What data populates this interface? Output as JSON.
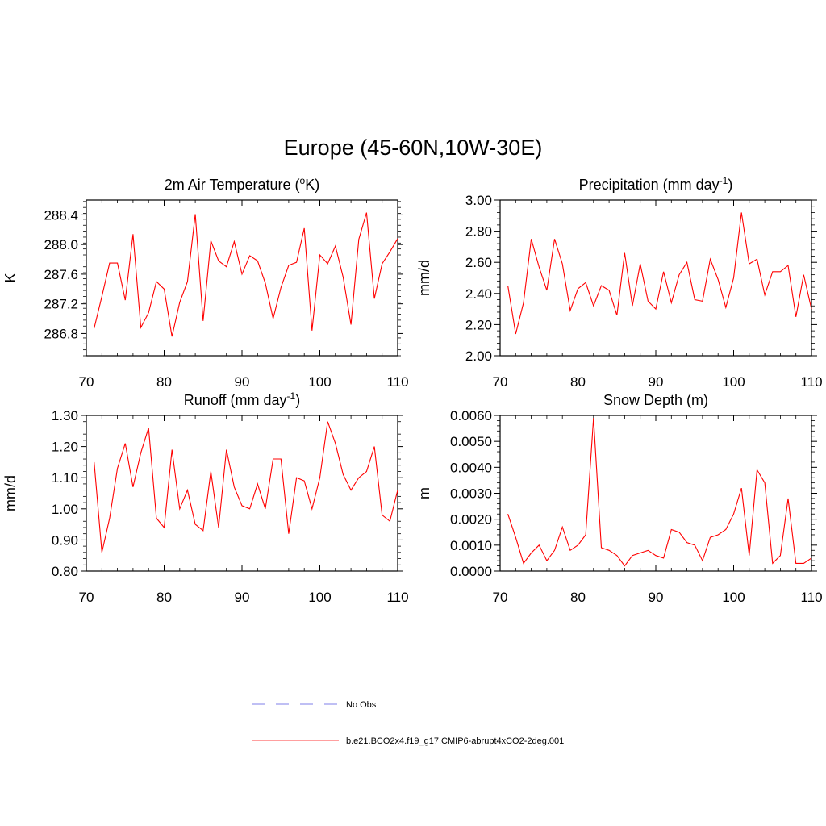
{
  "figure": {
    "title": "Europe (45-60N,10W-30E)"
  },
  "chart_data": [
    {
      "type": "line",
      "title": "2m Air Temperature (",
      "title_sup": "o",
      "title_end": "K)",
      "ylabel": "K",
      "xlim": [
        70,
        110
      ],
      "ylim": [
        286.5,
        288.6
      ],
      "xticks": [
        70,
        80,
        90,
        100,
        110
      ],
      "xtick_labels": [
        "70",
        "80",
        "90",
        "100",
        "110"
      ],
      "yticks": [
        286.8,
        287.2,
        287.6,
        288.0,
        288.4
      ],
      "ytick_labels": [
        "286.8",
        "287.2",
        "287.6",
        "288.0",
        "288.4"
      ],
      "series": [
        {
          "color": "#ff0000",
          "x": [
            71,
            72,
            73,
            74,
            75,
            76,
            77,
            78,
            79,
            80,
            81,
            82,
            83,
            84,
            85,
            86,
            87,
            88,
            89,
            90,
            91,
            92,
            93,
            94,
            95,
            96,
            97,
            98,
            99,
            100,
            101,
            102,
            103,
            104,
            105,
            106,
            107,
            108,
            109,
            110
          ],
          "values": [
            286.87,
            287.3,
            287.75,
            287.75,
            287.25,
            288.14,
            286.88,
            287.08,
            287.5,
            287.4,
            286.76,
            287.22,
            287.5,
            288.41,
            286.97,
            288.05,
            287.78,
            287.7,
            288.04,
            287.6,
            287.85,
            287.78,
            287.48,
            287.0,
            287.42,
            287.72,
            287.76,
            288.22,
            286.84,
            287.86,
            287.74,
            287.98,
            287.56,
            286.92,
            288.07,
            288.43,
            287.27,
            287.74,
            287.9,
            288.08
          ]
        }
      ]
    },
    {
      "type": "line",
      "title": "Precipitation (mm day",
      "title_sup": "-1",
      "title_end": ")",
      "ylabel": "mm/d",
      "xlim": [
        70,
        110
      ],
      "ylim": [
        2.0,
        3.0
      ],
      "xticks": [
        70,
        80,
        90,
        100,
        110
      ],
      "xtick_labels": [
        "70",
        "80",
        "90",
        "100",
        "110"
      ],
      "yticks": [
        2.0,
        2.2,
        2.4,
        2.6,
        2.8,
        3.0
      ],
      "ytick_labels": [
        "2.00",
        "2.20",
        "2.40",
        "2.60",
        "2.80",
        "3.00"
      ],
      "series": [
        {
          "color": "#ff0000",
          "x": [
            71,
            72,
            73,
            74,
            75,
            76,
            77,
            78,
            79,
            80,
            81,
            82,
            83,
            84,
            85,
            86,
            87,
            88,
            89,
            90,
            91,
            92,
            93,
            94,
            95,
            96,
            97,
            98,
            99,
            100,
            101,
            102,
            103,
            104,
            105,
            106,
            107,
            108,
            109,
            110
          ],
          "values": [
            2.45,
            2.14,
            2.34,
            2.75,
            2.57,
            2.42,
            2.75,
            2.59,
            2.29,
            2.43,
            2.47,
            2.32,
            2.45,
            2.42,
            2.26,
            2.66,
            2.32,
            2.59,
            2.35,
            2.3,
            2.54,
            2.34,
            2.52,
            2.6,
            2.36,
            2.35,
            2.62,
            2.49,
            2.31,
            2.5,
            2.92,
            2.59,
            2.62,
            2.39,
            2.54,
            2.54,
            2.58,
            2.25,
            2.52,
            2.3
          ]
        }
      ]
    },
    {
      "type": "line",
      "title": "Runoff (mm day",
      "title_sup": "-1",
      "title_end": ")",
      "ylabel": "mm/d",
      "xlim": [
        70,
        110
      ],
      "ylim": [
        0.8,
        1.3
      ],
      "xticks": [
        70,
        80,
        90,
        100,
        110
      ],
      "xtick_labels": [
        "70",
        "80",
        "90",
        "100",
        "110"
      ],
      "yticks": [
        0.8,
        0.9,
        1.0,
        1.1,
        1.2,
        1.3
      ],
      "ytick_labels": [
        "0.80",
        "0.90",
        "1.00",
        "1.10",
        "1.20",
        "1.30"
      ],
      "series": [
        {
          "color": "#ff0000",
          "x": [
            71,
            72,
            73,
            74,
            75,
            76,
            77,
            78,
            79,
            80,
            81,
            82,
            83,
            84,
            85,
            86,
            87,
            88,
            89,
            90,
            91,
            92,
            93,
            94,
            95,
            96,
            97,
            98,
            99,
            100,
            101,
            102,
            103,
            104,
            105,
            106,
            107,
            108,
            109,
            110
          ],
          "values": [
            1.15,
            0.86,
            0.97,
            1.13,
            1.21,
            1.07,
            1.18,
            1.26,
            0.97,
            0.94,
            1.19,
            1.0,
            1.06,
            0.95,
            0.93,
            1.12,
            0.94,
            1.19,
            1.07,
            1.01,
            1.0,
            1.08,
            1.0,
            1.16,
            1.16,
            0.92,
            1.1,
            1.09,
            1.0,
            1.1,
            1.28,
            1.21,
            1.11,
            1.06,
            1.1,
            1.12,
            1.2,
            0.98,
            0.96,
            1.06
          ]
        }
      ]
    },
    {
      "type": "line",
      "title": "Snow Depth (m)",
      "title_sup": "",
      "title_end": "",
      "ylabel": "m",
      "xlim": [
        70,
        110
      ],
      "ylim": [
        0.0,
        0.006
      ],
      "xticks": [
        70,
        80,
        90,
        100,
        110
      ],
      "xtick_labels": [
        "70",
        "80",
        "90",
        "100",
        "110"
      ],
      "yticks": [
        0.0,
        0.001,
        0.002,
        0.003,
        0.004,
        0.005,
        0.006
      ],
      "ytick_labels": [
        "0.0000",
        "0.0010",
        "0.0020",
        "0.0030",
        "0.0040",
        "0.0050",
        "0.0060"
      ],
      "series": [
        {
          "color": "#ff0000",
          "x": [
            71,
            72,
            73,
            74,
            75,
            76,
            77,
            78,
            79,
            80,
            81,
            82,
            83,
            84,
            85,
            86,
            87,
            88,
            89,
            90,
            91,
            92,
            93,
            94,
            95,
            96,
            97,
            98,
            99,
            100,
            101,
            102,
            103,
            104,
            105,
            106,
            107,
            108,
            109,
            110
          ],
          "values": [
            0.0022,
            0.0013,
            0.0003,
            0.0007,
            0.001,
            0.0004,
            0.0008,
            0.0017,
            0.0008,
            0.001,
            0.0014,
            0.0059,
            0.0009,
            0.0008,
            0.0006,
            0.0002,
            0.0006,
            0.0007,
            0.0008,
            0.0006,
            0.0005,
            0.0016,
            0.0015,
            0.0011,
            0.001,
            0.0004,
            0.0013,
            0.0014,
            0.0016,
            0.0022,
            0.0032,
            0.0006,
            0.0039,
            0.0034,
            0.0003,
            0.0006,
            0.0028,
            0.0003,
            0.0003,
            0.0005
          ]
        }
      ]
    }
  ],
  "legend": {
    "items": [
      {
        "label": "No Obs",
        "color": "#9999ee",
        "dashed": true
      },
      {
        "label": "b.e21.BCO2x4.f19_g17.CMIP6-abrupt4xCO2-2deg.001",
        "color": "#ff6666",
        "dashed": false
      }
    ]
  }
}
